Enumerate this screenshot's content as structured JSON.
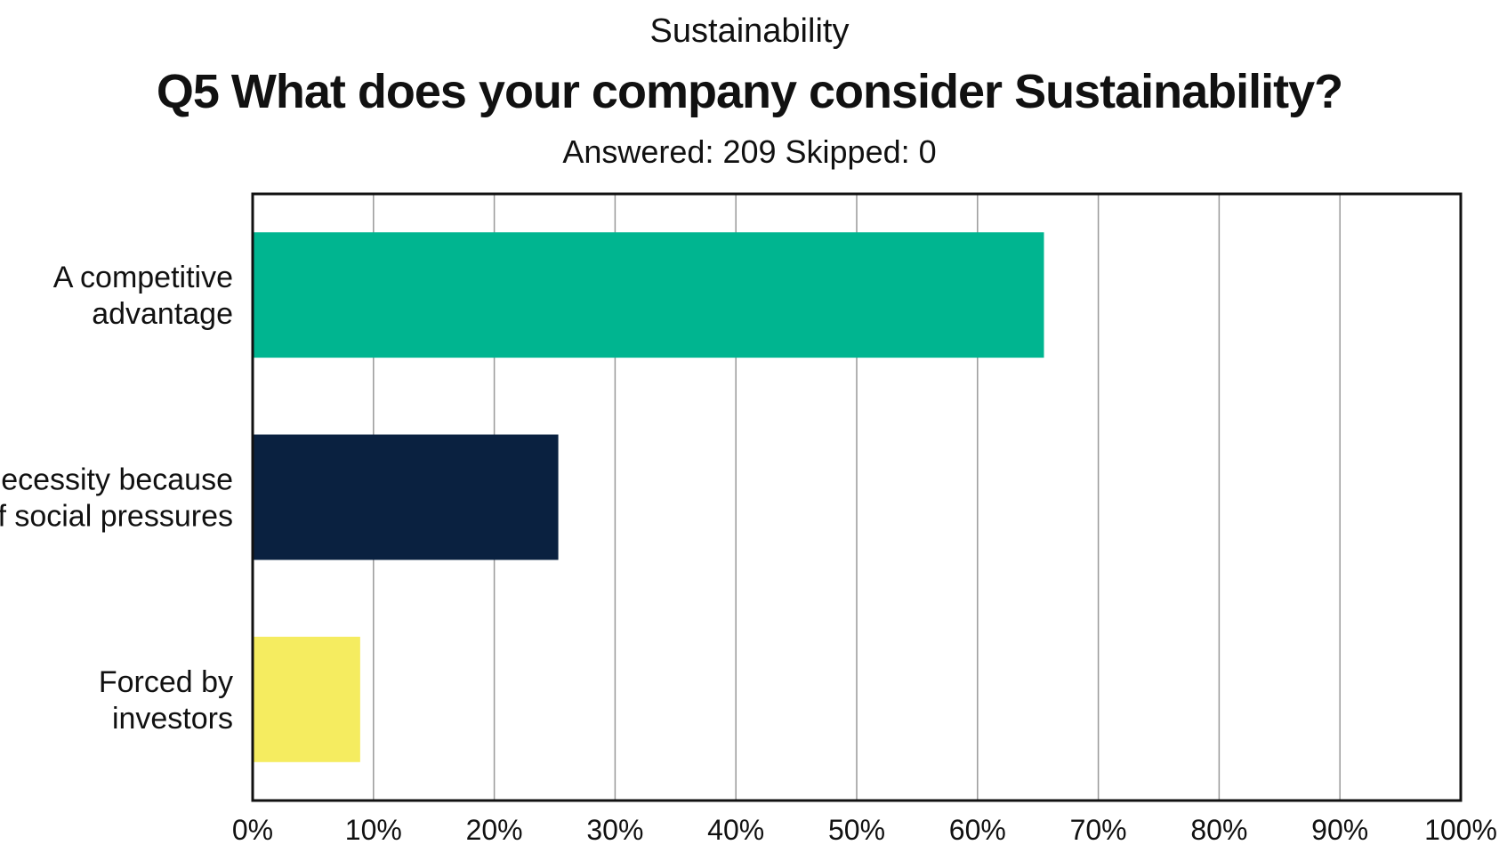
{
  "chart_data": {
    "type": "bar",
    "orientation": "horizontal",
    "supertitle": "Sustainability",
    "title": "Q5 What does your company consider Sustainability?",
    "subtitle": "Answered: 209 Skipped: 0",
    "categories": [
      [
        "A competitive",
        "advantage"
      ],
      [
        "A necessity because",
        "of social pressures"
      ],
      [
        "Forced by",
        "investors"
      ]
    ],
    "values": [
      65.5,
      25.3,
      8.9
    ],
    "colors": [
      "#00B590",
      "#0A2140",
      "#F5EC60"
    ],
    "xlim": [
      0,
      100
    ],
    "xticks": [
      "0%",
      "10%",
      "20%",
      "30%",
      "40%",
      "50%",
      "60%",
      "70%",
      "80%",
      "90%",
      "100%"
    ],
    "grid": true,
    "legend": "none"
  }
}
